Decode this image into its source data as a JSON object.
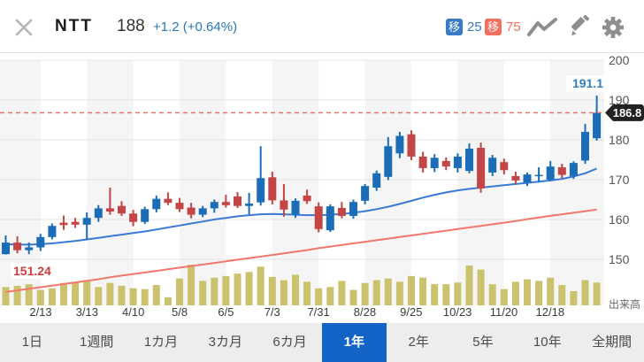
{
  "header": {
    "symbol": "NTT",
    "price": "188",
    "change": "+1.2 (+0.64%)",
    "ma_fast": {
      "badge": "移",
      "value": "25",
      "color": "#3a79c5"
    },
    "ma_slow": {
      "badge": "移",
      "value": "75",
      "color": "#f4705e"
    },
    "change_color": "#2878bd"
  },
  "chart_data": {
    "type": "candlestick",
    "y_ticks": [
      200,
      190,
      180,
      170,
      160,
      150
    ],
    "x_labels": [
      "2/13",
      "3/13",
      "4/10",
      "5/8",
      "6/5",
      "7/3",
      "7/31",
      "8/28",
      "9/25",
      "10/23",
      "11/20",
      "12/18"
    ],
    "current_price": 186.8,
    "current_price_label": "186.8",
    "high_label": "191.1",
    "low_label": "151.24",
    "volume_axis_label": "出来高",
    "candles_ohlc": [
      [
        151.3,
        156.0,
        151.2,
        154.2
      ],
      [
        154.2,
        155.8,
        151.5,
        152.3
      ],
      [
        152.3,
        154.2,
        151.3,
        153.0
      ],
      [
        153.0,
        156.4,
        152.1,
        155.6
      ],
      [
        155.6,
        159.0,
        155.0,
        158.4
      ],
      [
        159.2,
        161.0,
        157.4,
        158.6
      ],
      [
        159.4,
        160.4,
        157.9,
        158.7
      ],
      [
        158.7,
        161.8,
        154.9,
        160.4
      ],
      [
        160.4,
        163.6,
        159.4,
        162.8
      ],
      [
        162.8,
        168.0,
        161.2,
        162.0
      ],
      [
        163.4,
        164.6,
        160.9,
        161.5
      ],
      [
        161.5,
        162.4,
        158.3,
        159.4
      ],
      [
        159.4,
        163.2,
        158.9,
        162.6
      ],
      [
        162.6,
        166.0,
        161.8,
        165.2
      ],
      [
        165.2,
        166.8,
        163.6,
        164.2
      ],
      [
        164.2,
        165.4,
        161.9,
        162.6
      ],
      [
        163.0,
        164.2,
        160.3,
        161.2
      ],
      [
        161.2,
        163.4,
        160.6,
        162.8
      ],
      [
        162.8,
        165.0,
        161.7,
        164.4
      ],
      [
        164.4,
        166.2,
        163.0,
        163.6
      ],
      [
        165.8,
        166.9,
        162.9,
        163.4
      ],
      [
        163.4,
        166.7,
        161.3,
        164.0
      ],
      [
        164.3,
        178.4,
        163.5,
        170.4
      ],
      [
        170.6,
        172.0,
        163.8,
        164.8
      ],
      [
        164.8,
        168.9,
        160.7,
        162.5
      ],
      [
        161.3,
        165.3,
        160.4,
        164.7
      ],
      [
        166.0,
        167.5,
        163.9,
        164.6
      ],
      [
        163.3,
        164.3,
        156.8,
        157.6
      ],
      [
        157.3,
        163.8,
        156.9,
        163.3
      ],
      [
        162.9,
        164.4,
        160.3,
        160.9
      ],
      [
        160.9,
        165.0,
        160.2,
        164.4
      ],
      [
        164.7,
        168.9,
        163.8,
        168.4
      ],
      [
        168.0,
        172.3,
        167.2,
        171.6
      ],
      [
        170.7,
        180.7,
        169.9,
        178.4
      ],
      [
        176.6,
        182.0,
        175.4,
        181.0
      ],
      [
        181.4,
        182.4,
        174.9,
        175.8
      ],
      [
        175.8,
        177.0,
        171.8,
        172.9
      ],
      [
        172.9,
        176.4,
        171.9,
        175.5
      ],
      [
        174.7,
        175.6,
        172.4,
        173.3
      ],
      [
        172.9,
        176.6,
        171.8,
        175.8
      ],
      [
        172.2,
        179.1,
        171.6,
        177.8
      ],
      [
        178.0,
        179.3,
        166.7,
        167.8
      ],
      [
        171.8,
        176.2,
        170.9,
        175.5
      ],
      [
        174.4,
        175.3,
        171.3,
        172.4
      ],
      [
        170.9,
        172.0,
        168.9,
        169.8
      ],
      [
        169.3,
        171.8,
        168.4,
        171.3
      ],
      [
        171.0,
        173.1,
        169.3,
        171.2
      ],
      [
        170.0,
        174.7,
        169.6,
        173.3
      ],
      [
        173.1,
        174.0,
        170.4,
        171.2
      ],
      [
        170.9,
        174.6,
        170.2,
        174.2
      ],
      [
        174.8,
        184.0,
        174.0,
        182.0
      ],
      [
        180.4,
        191.1,
        179.8,
        186.8
      ]
    ],
    "volume_relative": [
      45,
      48,
      52,
      38,
      42,
      55,
      57,
      62,
      45,
      55,
      48,
      42,
      40,
      50,
      20,
      66,
      100,
      60,
      68,
      72,
      78,
      82,
      95,
      70,
      62,
      75,
      58,
      42,
      45,
      60,
      38,
      55,
      62,
      66,
      58,
      72,
      68,
      52,
      52,
      56,
      98,
      88,
      52,
      40,
      58,
      64,
      60,
      68,
      50,
      35,
      62,
      56
    ],
    "ma25": [
      153.8,
      153.7,
      153.7,
      153.8,
      154.0,
      154.3,
      154.6,
      155.0,
      155.4,
      155.8,
      156.2,
      156.6,
      157.0,
      157.5,
      158.0,
      158.5,
      159.0,
      159.5,
      160.0,
      160.4,
      160.8,
      161.1,
      161.3,
      161.4,
      161.3,
      161.2,
      161.1,
      161.1,
      161.2,
      161.4,
      161.7,
      162.1,
      162.6,
      163.2,
      163.9,
      164.7,
      165.5,
      166.2,
      166.8,
      167.3,
      167.7,
      168.0,
      168.3,
      168.6,
      168.9,
      169.2,
      169.5,
      169.8,
      170.2,
      170.8,
      171.6,
      172.8
    ],
    "ma75": [
      141.8,
      142.2,
      142.6,
      143.0,
      143.4,
      143.8,
      144.2,
      144.6,
      145.0,
      145.5,
      145.9,
      146.3,
      146.7,
      147.1,
      147.5,
      147.9,
      148.3,
      148.7,
      149.1,
      149.5,
      149.9,
      150.3,
      150.7,
      151.1,
      151.5,
      151.9,
      152.3,
      152.8,
      153.2,
      153.6,
      154.0,
      154.4,
      154.8,
      155.2,
      155.6,
      156.0,
      156.4,
      156.8,
      157.2,
      157.6,
      158.0,
      158.4,
      158.8,
      159.2,
      159.6,
      160.1,
      160.5,
      160.9,
      161.3,
      161.7,
      162.1,
      162.5
    ],
    "colors": {
      "candle_up": "#1a6db6",
      "candle_down": "#c44545",
      "ma25_line": "#3a7ad6",
      "ma75_line": "#f3776b",
      "volume_bar": "#cbc26d",
      "price_dashed_line": "#e87468",
      "marker_bg": "#222222",
      "high_text": "#2f7ec2",
      "low_text": "#cc3b3b",
      "stripe": "#f5f5f5",
      "grid": "#e4e4e4"
    }
  },
  "tabs": {
    "labels": [
      "1日",
      "1週間",
      "1カ月",
      "3カ月",
      "6カ月",
      "1年",
      "2年",
      "5年",
      "10年",
      "全期間"
    ],
    "selected": "1年",
    "selected_bg": "#1464c8"
  }
}
